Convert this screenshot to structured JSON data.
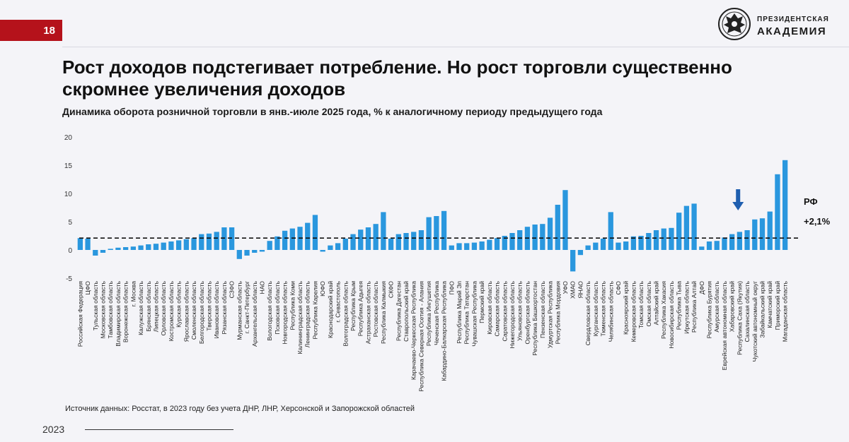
{
  "page": {
    "number": "18",
    "year": "2023"
  },
  "logo": {
    "line1": "ПРЕЗИДЕНТСКАЯ",
    "line2": "АКАДЕМИЯ"
  },
  "title": "Рост доходов подстегивает потребление. Но рост торговли существенно скромнее увеличения доходов",
  "subtitle": "Динамика оборота розничной торговли в янв.-июле 2025 года, % к аналогичному периоду предыдущего года",
  "source": "Источник данных: Росстат, в 2023 году без учета ДНР, ЛНР, Херсонской и Запорожской областей",
  "colors": {
    "bar": "#2a97de",
    "badge": "#b5121b",
    "refline": "#111111"
  },
  "chart_data": {
    "type": "bar",
    "title": "Динамика оборота розничной торговли в янв.-июле 2025 года, % к аналогичному периоду предыдущего года",
    "ylim": [
      -5,
      20
    ],
    "yticks": [
      -5,
      0,
      5,
      10,
      15,
      20
    ],
    "grid": false,
    "reference_line": {
      "value": 2.1,
      "label_top": "РФ",
      "label_bottom": "+2,1%"
    },
    "categories": [
      "Российская Федерация",
      "ЦФО",
      "Тульская область",
      "Московская область",
      "Тамбовская область",
      "Владимирская область",
      "Воронежская область",
      "г. Москва",
      "Калужская область",
      "Брянская область",
      "Липецкая область",
      "Орловская область",
      "Костромская область",
      "Курская область",
      "Ярославская область",
      "Смоленская область",
      "Белгородская область",
      "Тверская область",
      "Ивановская область",
      "Рязанская область",
      "СЗФО",
      "Мурманская область",
      "г. Санкт-Петербург",
      "Архангельская область",
      "НАО",
      "Вологодская область",
      "Псковская область",
      "Новгородская область",
      "Республика Коми",
      "Калининградская область",
      "Ленинградская область",
      "Республика Карелия",
      "ЮФО",
      "Краснодарский край",
      "г. Севастополь",
      "Волгоградская область",
      "Республика Крым",
      "Республика Адыгея",
      "Астраханская область",
      "Ростовская область",
      "Республика Калмыкия",
      "СКФО",
      "Республика Дагестан",
      "Ставропольский край",
      "Карачаево-Черкесская Республика",
      "Республика Северная Осетия - Алания",
      "Республика Ингушетия",
      "Чеченская Республика",
      "Кабардино-Балкарская Республика",
      "ПФО",
      "Республика Марий Эл",
      "Республика Татарстан",
      "Чувашская Республика",
      "Пермский край",
      "Кировская область",
      "Самарская область",
      "Саратовская область",
      "Нижегородская область",
      "Ульяновская область",
      "Оренбургская область",
      "Республика Башкортостан",
      "Пензенская область",
      "Удмуртская Республика",
      "Республика Мордовия",
      "УФО",
      "ХМАО",
      "ЯНАО",
      "Свердловская область",
      "Курганская область",
      "Тюменская область",
      "Челябинская область",
      "СФО",
      "Красноярский край",
      "Кемеровская область",
      "Томская область",
      "Омская область",
      "Алтайский край",
      "Республика Хакасия",
      "Новосибирская область",
      "Республика Тыва",
      "Иркутская область",
      "Республика Алтай",
      "ДФО",
      "Республика Бурятия",
      "Амурская область",
      "Еврейская автономная область",
      "Хабаровский край",
      "Республика Саха (Якутия)",
      "Сахалинская область",
      "Чукотский автономный округ",
      "Забайкальский край",
      "Камчатский край",
      "Приморский край",
      "Магаданская область"
    ],
    "values": [
      2.1,
      2.0,
      -1.0,
      -0.5,
      0.2,
      0.4,
      0.5,
      0.6,
      0.8,
      1.0,
      1.1,
      1.3,
      1.5,
      1.7,
      1.9,
      2.1,
      2.8,
      2.9,
      3.2,
      4.0,
      4.0,
      -1.6,
      -1.0,
      -0.5,
      -0.3,
      1.6,
      2.4,
      3.4,
      3.8,
      4.1,
      4.8,
      6.2,
      -0.3,
      0.8,
      1.2,
      2.0,
      2.8,
      3.6,
      4.0,
      4.6,
      6.7,
      2.0,
      2.8,
      3.0,
      3.2,
      3.5,
      5.8,
      6.0,
      6.9,
      0.8,
      1.2,
      1.2,
      1.3,
      1.5,
      1.8,
      2.1,
      2.5,
      3.0,
      3.5,
      4.1,
      4.5,
      4.6,
      5.7,
      8.0,
      10.6,
      -3.8,
      -0.9,
      0.8,
      1.3,
      2.0,
      6.7,
      1.3,
      1.5,
      2.4,
      2.5,
      3.0,
      3.5,
      3.8,
      3.9,
      6.6,
      7.8,
      8.2,
      0.6,
      1.5,
      1.6,
      2.2,
      2.8,
      3.2,
      3.5,
      5.4,
      5.6,
      6.8,
      13.4,
      15.9
    ],
    "marked_category": "Сахалинская область"
  }
}
